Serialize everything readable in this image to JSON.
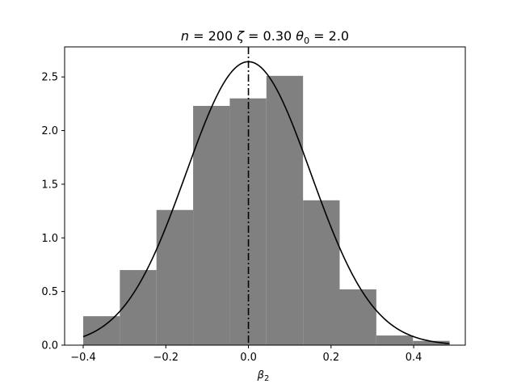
{
  "chart_data": {
    "type": "bar",
    "title": {
      "n_label": "n",
      "n_value": "200",
      "zeta_label": "ζ",
      "zeta_value": "0.30",
      "theta_label": "θ",
      "theta_sub": "0",
      "theta_value": "2.0"
    },
    "xlabel": {
      "symbol": "β",
      "sub": "2"
    },
    "ylabel": "",
    "xlim": [
      -0.445,
      0.525
    ],
    "ylim": [
      0,
      2.78
    ],
    "xticks": [
      -0.4,
      -0.2,
      0.0,
      0.2,
      0.4
    ],
    "xtick_labels": [
      "−0.4",
      "−0.2",
      "0.0",
      "0.2",
      "0.4"
    ],
    "yticks": [
      0.0,
      0.5,
      1.0,
      1.5,
      2.0,
      2.5
    ],
    "ytick_labels": [
      "0.0",
      "0.5",
      "1.0",
      "1.5",
      "2.0",
      "2.5"
    ],
    "bin_edges": [
      -0.4,
      -0.3113,
      -0.2226,
      -0.1339,
      -0.0452,
      0.0435,
      0.1322,
      0.2209,
      0.3096,
      0.3983,
      0.487
    ],
    "values": [
      0.27,
      0.7,
      1.26,
      2.23,
      2.3,
      2.51,
      1.35,
      0.52,
      0.09,
      0.04
    ],
    "bar_color": "#808080",
    "density_curve": {
      "mean": 0.0,
      "sd": 0.151,
      "x_range": [
        -0.4,
        0.487
      ],
      "color": "#000000"
    },
    "vline": {
      "x": 0.0,
      "style": "dashdot",
      "color": "#000000"
    },
    "grid": false,
    "legend": "none"
  }
}
